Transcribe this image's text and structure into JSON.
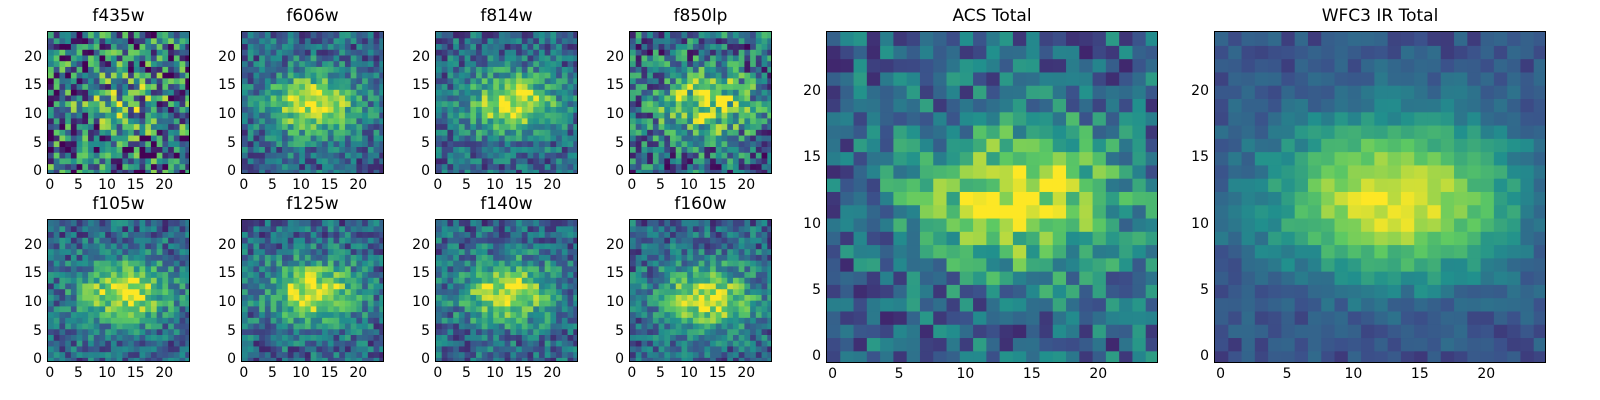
{
  "chart_data": [
    {
      "type": "heatmap",
      "title": "f435w",
      "pattern": "noisy",
      "seed": 1,
      "xticks": [
        "0",
        "5",
        "10",
        "15",
        "20"
      ],
      "yticks": [
        "0",
        "5",
        "10",
        "15",
        "20"
      ],
      "grid_size": 25,
      "center": [
        13,
        12
      ]
    },
    {
      "type": "heatmap",
      "title": "f606w",
      "pattern": "blob",
      "seed": 2,
      "xticks": [
        "0",
        "5",
        "10",
        "15",
        "20"
      ],
      "yticks": [
        "0",
        "5",
        "10",
        "15",
        "20"
      ],
      "grid_size": 25,
      "center": [
        12,
        12
      ]
    },
    {
      "type": "heatmap",
      "title": "f814w",
      "pattern": "blob",
      "seed": 3,
      "xticks": [
        "0",
        "5",
        "10",
        "15",
        "20"
      ],
      "yticks": [
        "0",
        "5",
        "10",
        "15",
        "20"
      ],
      "grid_size": 25,
      "center": [
        13,
        12
      ]
    },
    {
      "type": "heatmap",
      "title": "f850lp",
      "pattern": "blob-noisy",
      "seed": 4,
      "xticks": [
        "0",
        "5",
        "10",
        "15",
        "20"
      ],
      "yticks": [
        "0",
        "5",
        "10",
        "15",
        "20"
      ],
      "grid_size": 25,
      "center": [
        13,
        12
      ]
    },
    {
      "type": "heatmap",
      "title": "f105w",
      "pattern": "blob",
      "seed": 5,
      "xticks": [
        "0",
        "5",
        "10",
        "15",
        "20"
      ],
      "yticks": [
        "0",
        "5",
        "10",
        "15",
        "20"
      ],
      "grid_size": 25,
      "center": [
        13,
        12
      ]
    },
    {
      "type": "heatmap",
      "title": "f125w",
      "pattern": "blob",
      "seed": 6,
      "xticks": [
        "0",
        "5",
        "10",
        "15",
        "20"
      ],
      "yticks": [
        "0",
        "5",
        "10",
        "15",
        "20"
      ],
      "grid_size": 25,
      "center": [
        12,
        12
      ]
    },
    {
      "type": "heatmap",
      "title": "f140w",
      "pattern": "blob",
      "seed": 7,
      "xticks": [
        "0",
        "5",
        "10",
        "15",
        "20"
      ],
      "yticks": [
        "0",
        "5",
        "10",
        "15",
        "20"
      ],
      "grid_size": 25,
      "center": [
        12,
        12
      ]
    },
    {
      "type": "heatmap",
      "title": "f160w",
      "pattern": "blob",
      "seed": 8,
      "xticks": [
        "0",
        "5",
        "10",
        "15",
        "20"
      ],
      "yticks": [
        "0",
        "5",
        "10",
        "15",
        "20"
      ],
      "grid_size": 25,
      "center": [
        13,
        11
      ]
    },
    {
      "type": "heatmap",
      "title": "ACS Total",
      "pattern": "blob",
      "seed": 9,
      "xticks": [
        "0",
        "5",
        "10",
        "15",
        "20"
      ],
      "yticks": [
        "0",
        "5",
        "10",
        "15",
        "20"
      ],
      "grid_size": 25,
      "center": [
        14,
        12
      ]
    },
    {
      "type": "heatmap",
      "title": "WFC3 IR Total",
      "pattern": "smooth",
      "seed": 10,
      "xticks": [
        "0",
        "5",
        "10",
        "15",
        "20"
      ],
      "yticks": [
        "0",
        "5",
        "10",
        "15",
        "20"
      ],
      "grid_size": 25,
      "center": [
        13,
        12
      ]
    }
  ],
  "colors": {
    "low": "#440154",
    "mid_low": "#31688e",
    "mid": "#21908d",
    "mid_high": "#5dc963",
    "high": "#fde725"
  }
}
